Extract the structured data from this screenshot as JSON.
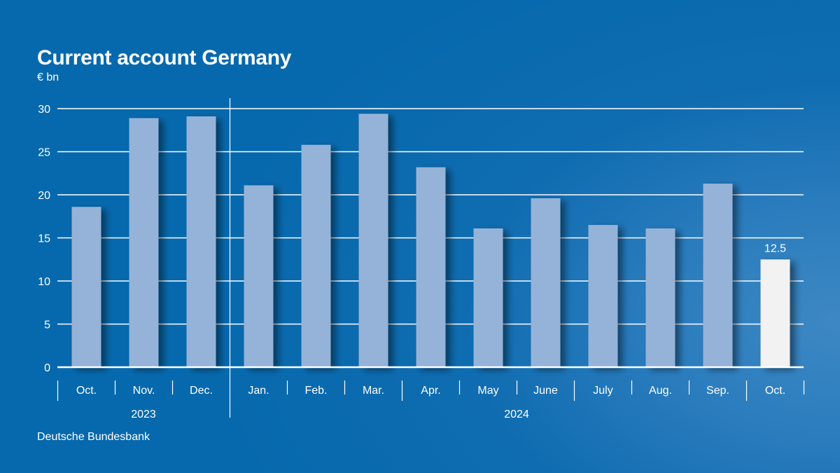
{
  "title": "Current account Germany",
  "unit": "€ bn",
  "source": "Deutsche Bundesbank",
  "colors": {
    "background": "#0769ad",
    "bar": "#95b3d8",
    "highlight_bar": "#f2f2f2",
    "text": "#ffffff",
    "grid": "#ffffff"
  },
  "chart_data": {
    "type": "bar",
    "title": "Current account Germany",
    "ylabel": "€ bn",
    "xlabel": "",
    "ylim": [
      0,
      30
    ],
    "yticks": [
      0,
      5,
      10,
      15,
      20,
      25,
      30
    ],
    "grid": true,
    "categories": [
      "Oct.",
      "Nov.",
      "Dec.",
      "Jan.",
      "Feb.",
      "Mar.",
      "Apr.",
      "May",
      "June",
      "July",
      "Aug.",
      "Sep.",
      "Oct."
    ],
    "values": [
      18.6,
      28.9,
      29.1,
      21.1,
      25.8,
      29.4,
      23.2,
      16.1,
      19.6,
      16.5,
      16.1,
      21.3,
      12.5
    ],
    "years": [
      {
        "label": "2023",
        "span": 3
      },
      {
        "label": "2024",
        "span": 10
      }
    ],
    "highlight_index": 12,
    "data_labels": [
      {
        "index": 12,
        "text": "12.5"
      }
    ]
  }
}
